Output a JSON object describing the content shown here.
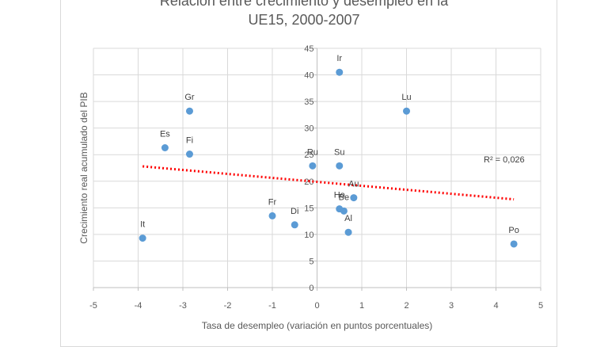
{
  "chart_data": {
    "type": "scatter",
    "title_line1": "Relación entre crecimiento y desempleo en la",
    "title_line2": "UE15, 2000-2007",
    "xlabel": "Tasa de desempleo (variación en puntos  porcentuales)",
    "ylabel": "Crecimiento real acumulado del PIB",
    "xlim": [
      -5,
      5
    ],
    "ylim": [
      0,
      45
    ],
    "xticks": [
      -5,
      -4,
      -3,
      -2,
      -1,
      0,
      1,
      2,
      3,
      4,
      5
    ],
    "yticks": [
      0,
      5,
      10,
      15,
      20,
      25,
      30,
      35,
      40,
      45
    ],
    "grid": true,
    "point_color": "#5b9bd5",
    "trend_color": "#ff0000",
    "points": [
      {
        "label": "Ir",
        "x": 0.5,
        "y": 40.5
      },
      {
        "label": "Lu",
        "x": 2.0,
        "y": 33.2
      },
      {
        "label": "Gr",
        "x": -2.85,
        "y": 33.2
      },
      {
        "label": "Es",
        "x": -3.4,
        "y": 26.3
      },
      {
        "label": "Fi",
        "x": -2.85,
        "y": 25.1
      },
      {
        "label": "Ru",
        "x": -0.1,
        "y": 22.9
      },
      {
        "label": "Su",
        "x": 0.5,
        "y": 22.9
      },
      {
        "label": "Au",
        "x": 0.82,
        "y": 16.9
      },
      {
        "label": "Ho",
        "x": 0.5,
        "y": 14.8
      },
      {
        "label": "Be",
        "x": 0.6,
        "y": 14.4
      },
      {
        "label": "Fr",
        "x": -1.0,
        "y": 13.5
      },
      {
        "label": "Di",
        "x": -0.5,
        "y": 11.8
      },
      {
        "label": "Al",
        "x": 0.7,
        "y": 10.4
      },
      {
        "label": "It",
        "x": -3.9,
        "y": 9.3
      },
      {
        "label": "Po",
        "x": 4.4,
        "y": 8.2
      }
    ],
    "trendline": {
      "x": [
        -3.9,
        4.4
      ],
      "y": [
        22.8,
        16.6
      ],
      "r2_label": "R² = 0,026"
    }
  }
}
